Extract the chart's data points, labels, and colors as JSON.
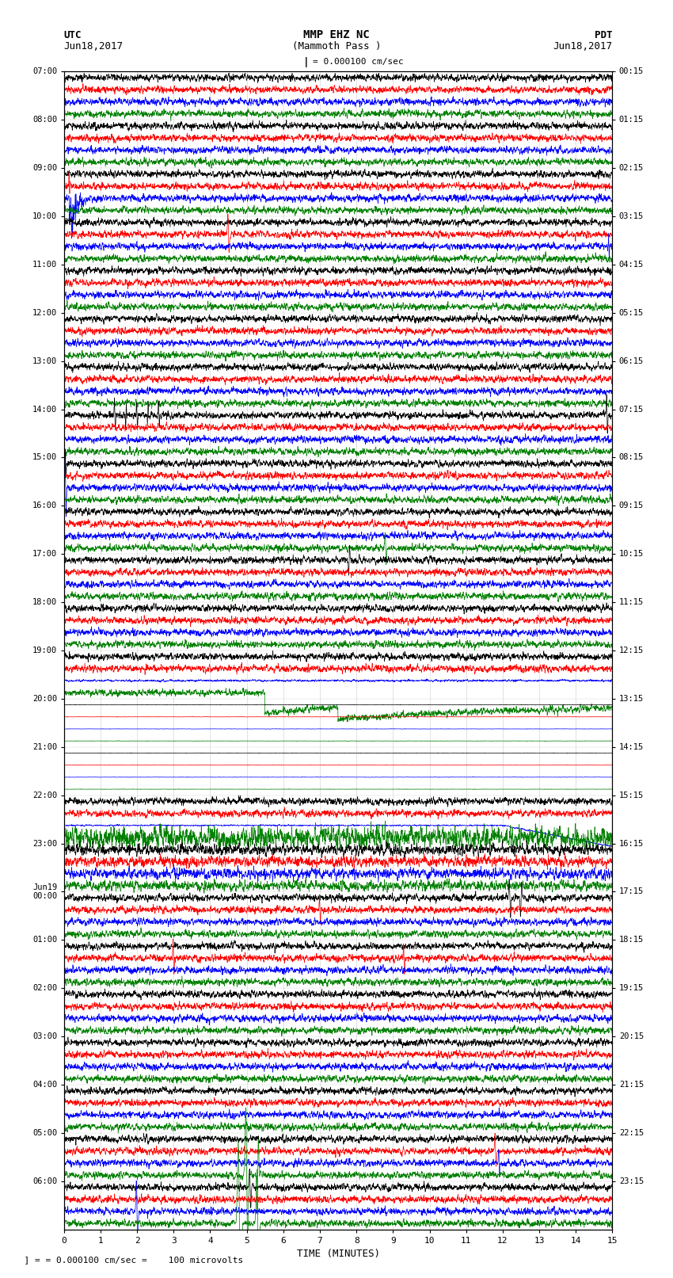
{
  "title_line1": "MMP EHZ NC",
  "title_line2": "(Mammoth Pass )",
  "scale_label": "= 0.000100 cm/sec",
  "scale_label2": "= 0.000100 cm/sec =    100 microvolts",
  "utc_label": "UTC",
  "utc_date": "Jun18,2017",
  "pdt_label": "PDT",
  "pdt_date": "Jun18,2017",
  "xlabel": "TIME (MINUTES)",
  "left_times": [
    "07:00",
    "08:00",
    "09:00",
    "10:00",
    "11:00",
    "12:00",
    "13:00",
    "14:00",
    "15:00",
    "16:00",
    "17:00",
    "18:00",
    "19:00",
    "20:00",
    "21:00",
    "22:00",
    "23:00",
    "Jun19\n00:00",
    "01:00",
    "02:00",
    "03:00",
    "04:00",
    "05:00",
    "06:00"
  ],
  "right_times": [
    "00:15",
    "01:15",
    "02:15",
    "03:15",
    "04:15",
    "05:15",
    "06:15",
    "07:15",
    "08:15",
    "09:15",
    "10:15",
    "11:15",
    "12:15",
    "13:15",
    "14:15",
    "15:15",
    "16:15",
    "17:15",
    "18:15",
    "19:15",
    "20:15",
    "21:15",
    "22:15",
    "23:15"
  ],
  "num_rows": 24,
  "traces_per_row": 4,
  "colors": [
    "black",
    "red",
    "blue",
    "green"
  ],
  "bg_color": "white",
  "grid_color": "#aaaaaa",
  "xmin": 0,
  "xmax": 15,
  "xticks": [
    0,
    1,
    2,
    3,
    4,
    5,
    6,
    7,
    8,
    9,
    10,
    11,
    12,
    13,
    14,
    15
  ]
}
